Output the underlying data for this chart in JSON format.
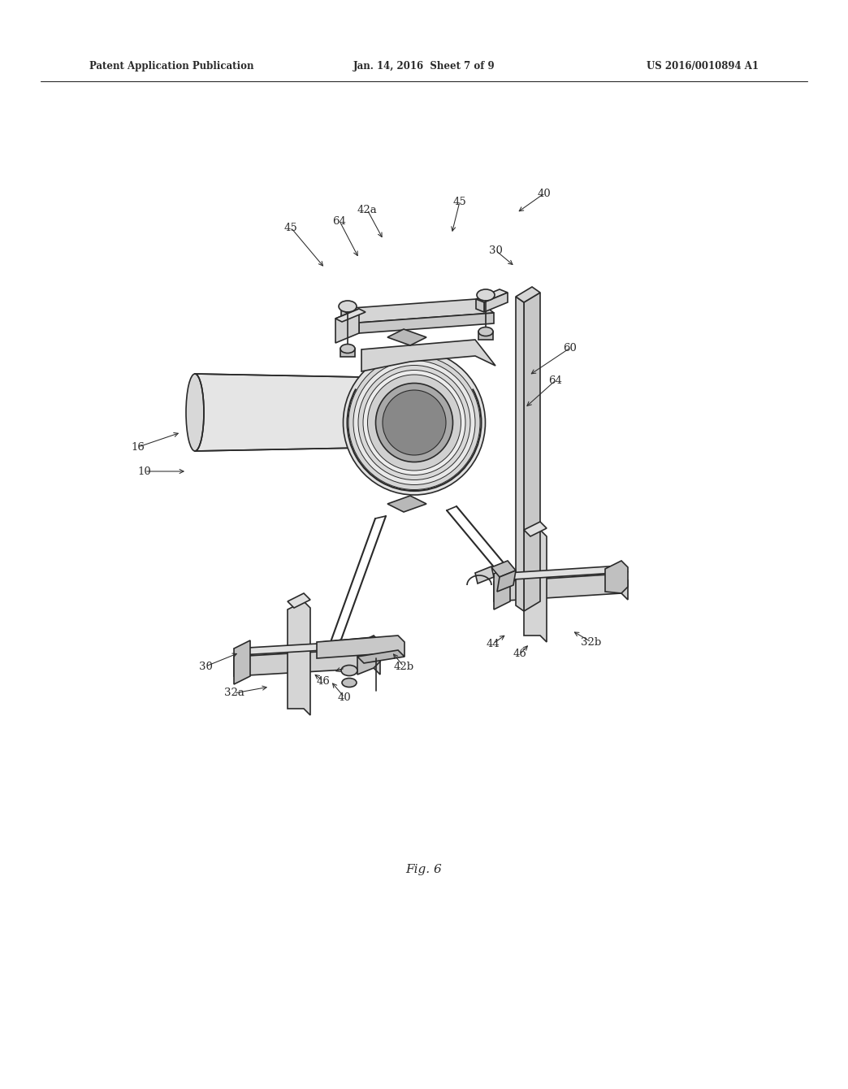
{
  "background_color": "#ffffff",
  "line_color": "#2a2a2a",
  "header_left": "Patent Application Publication",
  "header_center": "Jan. 14, 2016  Sheet 7 of 9",
  "header_right": "US 2016/0010894 A1",
  "figure_label": "Fig. 6",
  "annotations": [
    [
      168,
      570,
      220,
      570,
      "10"
    ],
    [
      160,
      540,
      213,
      522,
      "16"
    ],
    [
      243,
      810,
      285,
      793,
      "30"
    ],
    [
      600,
      298,
      624,
      318,
      "30"
    ],
    [
      278,
      843,
      322,
      835,
      "32a"
    ],
    [
      718,
      780,
      694,
      766,
      "32b"
    ],
    [
      660,
      228,
      626,
      252,
      "40"
    ],
    [
      414,
      848,
      397,
      828,
      "40"
    ],
    [
      442,
      248,
      462,
      285,
      "42a"
    ],
    [
      487,
      810,
      472,
      792,
      "42b"
    ],
    [
      415,
      812,
      400,
      817,
      "44"
    ],
    [
      597,
      782,
      614,
      770,
      "44"
    ],
    [
      556,
      238,
      546,
      278,
      "45"
    ],
    [
      348,
      270,
      390,
      320,
      "45"
    ],
    [
      388,
      828,
      375,
      818,
      "46"
    ],
    [
      630,
      795,
      642,
      782,
      "46"
    ],
    [
      692,
      418,
      641,
      452,
      "60"
    ],
    [
      408,
      262,
      432,
      308,
      "64"
    ],
    [
      674,
      458,
      636,
      492,
      "64"
    ]
  ]
}
